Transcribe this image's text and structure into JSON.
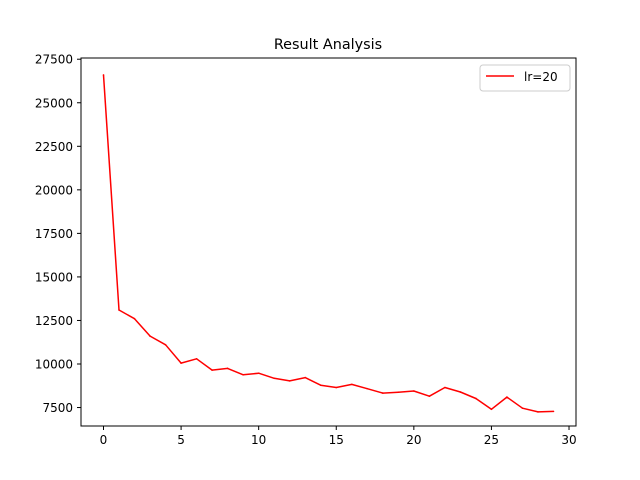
{
  "chart_data": {
    "type": "line",
    "title": "Result Analysis",
    "xlabel": "",
    "ylabel": "",
    "xlim": [
      -1.45,
      30.45
    ],
    "ylim": [
      6440,
      27570
    ],
    "x_ticks": [
      0,
      5,
      10,
      15,
      20,
      25,
      30
    ],
    "y_ticks": [
      7500,
      10000,
      12500,
      15000,
      17500,
      20000,
      22500,
      25000,
      27500
    ],
    "grid": false,
    "legend_position": "upper right",
    "series": [
      {
        "name": "lr=20",
        "color": "#ff0000",
        "x": [
          0,
          1,
          2,
          3,
          4,
          5,
          6,
          7,
          8,
          9,
          10,
          11,
          12,
          13,
          14,
          15,
          16,
          17,
          18,
          19,
          20,
          21,
          22,
          23,
          24,
          25,
          26,
          27,
          28,
          29
        ],
        "values": [
          26600,
          13100,
          12600,
          11600,
          11100,
          10050,
          10300,
          9650,
          9750,
          9380,
          9470,
          9180,
          9030,
          9220,
          8780,
          8650,
          8830,
          8580,
          8330,
          8380,
          8450,
          8150,
          8650,
          8390,
          8020,
          7400,
          8100,
          7460,
          7250,
          7280
        ]
      }
    ]
  }
}
